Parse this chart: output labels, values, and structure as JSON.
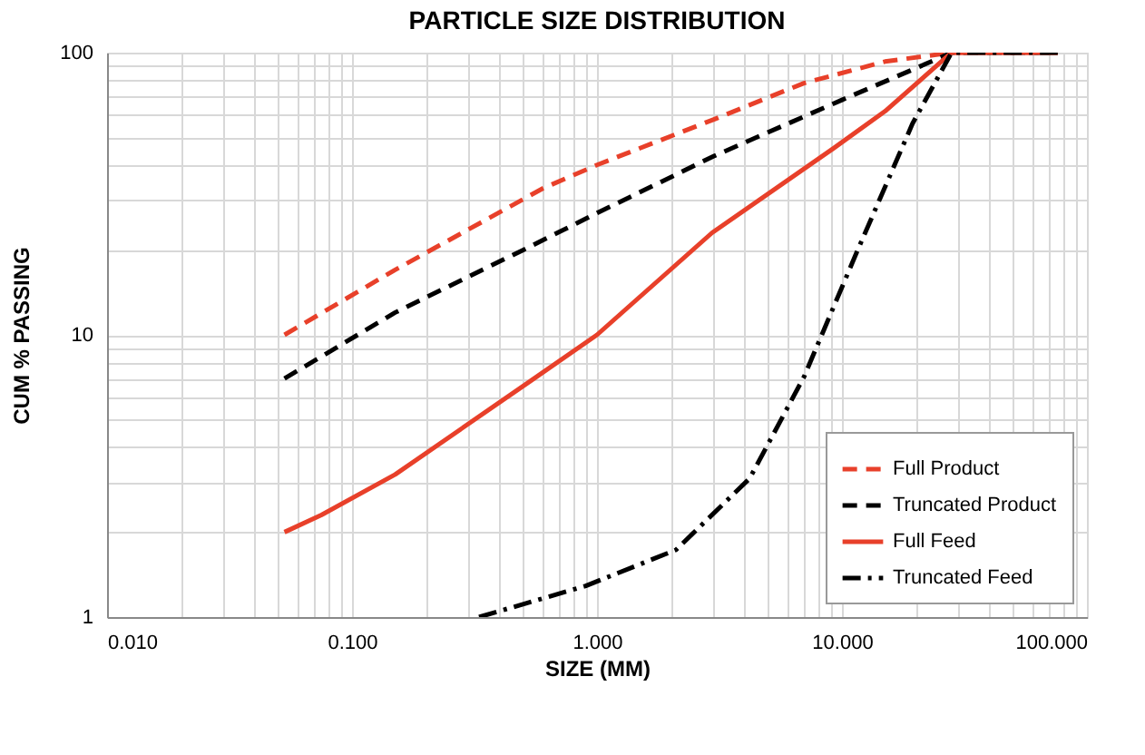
{
  "chart_data": {
    "type": "line",
    "title": "PARTICLE SIZE DISTRIBUTION",
    "xlabel": "SIZE (MM)",
    "ylabel": "CUM % PASSING",
    "log": "xy",
    "grid": true,
    "legend": "bottom right",
    "xlim": [
      0.01,
      100
    ],
    "xticks": [
      {
        "value": 0.01,
        "label": "0.010"
      },
      {
        "value": 0.1,
        "label": "0.100"
      },
      {
        "value": 1,
        "label": "1.000"
      },
      {
        "value": 10,
        "label": "10.000"
      },
      {
        "value": 100,
        "label": "100.000"
      }
    ],
    "ylim": [
      1,
      100
    ],
    "yticks": [
      1,
      10,
      100
    ],
    "series": [
      {
        "name": "Full Product",
        "color": "#e8402a",
        "line_style": "dashed",
        "x": [
          0.053,
          0.15,
          0.6,
          1,
          3,
          7,
          15,
          28,
          76
        ],
        "values": [
          10,
          17,
          33,
          40,
          58,
          78,
          93,
          100,
          100
        ]
      },
      {
        "name": "Truncated Product",
        "color": "#000000",
        "line_style": "dashed",
        "x": [
          0.053,
          0.15,
          0.5,
          1,
          3,
          10,
          20,
          28,
          76
        ],
        "values": [
          7,
          12,
          20,
          27,
          43,
          68,
          88,
          100,
          100
        ]
      },
      {
        "name": "Full Feed",
        "color": "#e8402a",
        "line_style": "solid",
        "x": [
          0.053,
          0.075,
          0.15,
          0.54,
          1,
          2.95,
          9.3,
          15,
          28,
          76
        ],
        "values": [
          2,
          2.3,
          3.2,
          6.9,
          10,
          23,
          46,
          62,
          100,
          100
        ]
      },
      {
        "name": "Truncated Feed",
        "color": "#000000",
        "line_style": "dashdot",
        "x": [
          0.33,
          0.9,
          2.1,
          4.2,
          7,
          11.6,
          19.4,
          28,
          76
        ],
        "values": [
          1,
          1.29,
          1.73,
          3.1,
          7.1,
          20,
          56,
          100,
          100
        ]
      }
    ]
  }
}
